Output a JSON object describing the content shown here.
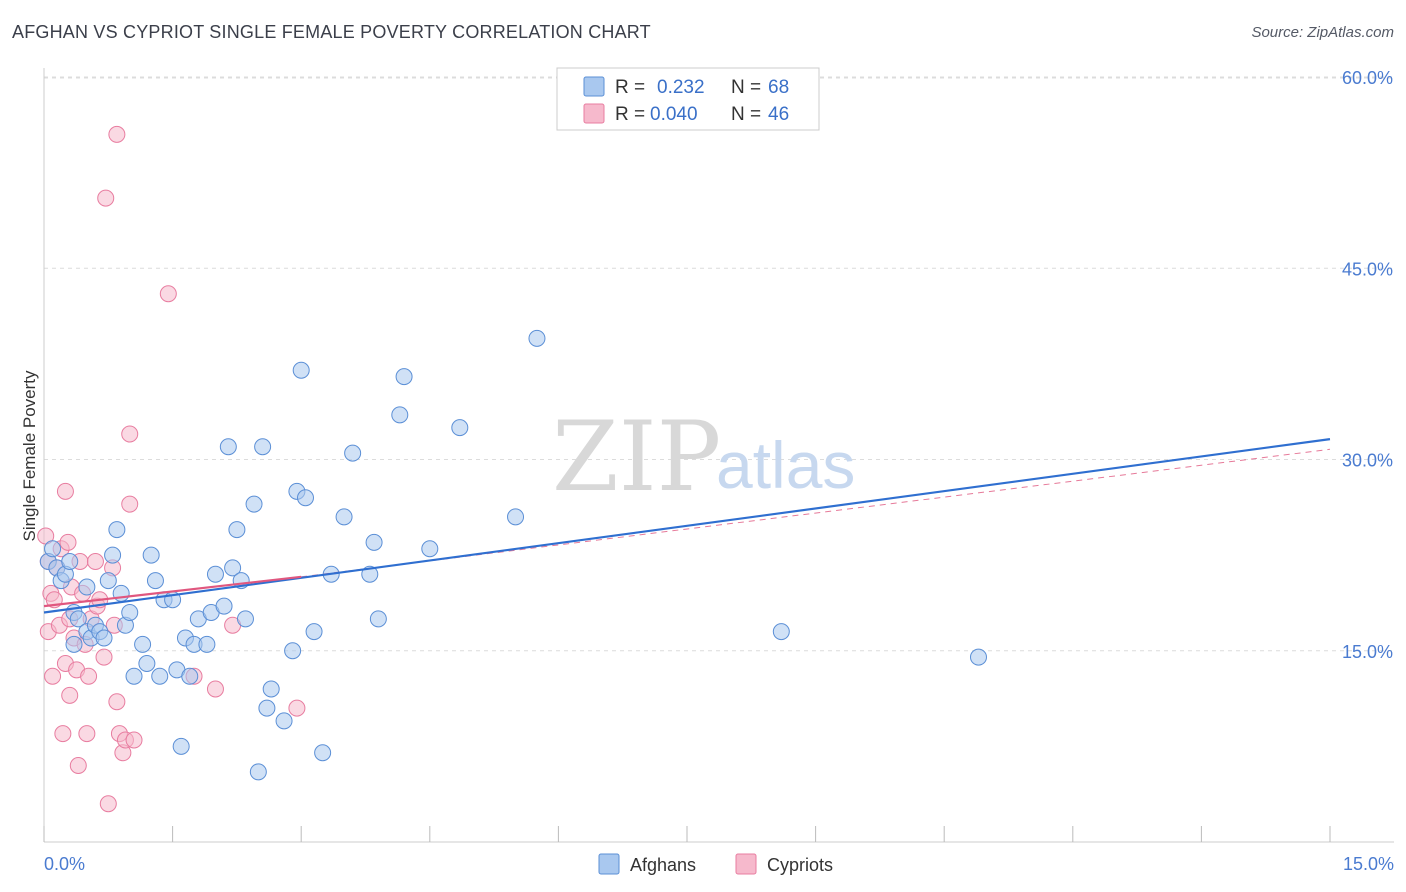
{
  "title": "AFGHAN VS CYPRIOT SINGLE FEMALE POVERTY CORRELATION CHART",
  "source": "Source: ZipAtlas.com",
  "colors": {
    "afghans_fill": "#a9c8ef",
    "afghans_stroke": "#5b8fd6",
    "afghans_line": "#2f6fd0",
    "cypriots_fill": "#f6b9cc",
    "cypriots_stroke": "#e87da0",
    "cypriots_line": "#e0577f",
    "tick_label": "#4a7bd0",
    "grid": "#dcdcdc"
  },
  "watermark": {
    "zip": "ZIP",
    "atlas": "atlas"
  },
  "legend": {
    "rows": [
      {
        "r_label": "R = ",
        "r_value": "0.232",
        "n_label": "N = ",
        "n_value": "68"
      },
      {
        "r_label": "R = ",
        "r_value": "0.040",
        "n_label": "N = ",
        "n_value": "46"
      }
    ]
  },
  "bottom_legend": {
    "afghans": "Afghans",
    "cypriots": "Cypriots"
  },
  "chart_data": {
    "type": "scatter",
    "title": "AFGHAN VS CYPRIOT SINGLE FEMALE POVERTY CORRELATION CHART",
    "xlabel": "",
    "ylabel": "Single Female Poverty",
    "xlim": [
      0,
      15
    ],
    "ylim": [
      0,
      61
    ],
    "x_tick_labels": [
      "0.0%",
      "15.0%"
    ],
    "y_ticks": [
      15,
      30,
      45,
      60
    ],
    "y_tick_labels": [
      "15.0%",
      "30.0%",
      "45.0%",
      "60.0%"
    ],
    "grid": true,
    "legend_position": "top-center",
    "series": [
      {
        "name": "Afghans",
        "r": 0.232,
        "n": 68,
        "trend": {
          "x": [
            0,
            15
          ],
          "y": [
            18.0,
            31.6
          ]
        },
        "points": [
          [
            0.05,
            22.0
          ],
          [
            0.1,
            23.0
          ],
          [
            0.15,
            21.5
          ],
          [
            0.2,
            20.5
          ],
          [
            0.25,
            21.0
          ],
          [
            0.3,
            22.0
          ],
          [
            0.35,
            15.5
          ],
          [
            0.35,
            18.0
          ],
          [
            0.4,
            17.5
          ],
          [
            0.5,
            20.0
          ],
          [
            0.5,
            16.5
          ],
          [
            0.55,
            16.0
          ],
          [
            0.6,
            17.0
          ],
          [
            0.65,
            16.5
          ],
          [
            0.7,
            16.0
          ],
          [
            0.75,
            20.5
          ],
          [
            0.8,
            22.5
          ],
          [
            0.85,
            24.5
          ],
          [
            0.9,
            19.5
          ],
          [
            0.95,
            17.0
          ],
          [
            1.0,
            18.0
          ],
          [
            1.05,
            13.0
          ],
          [
            1.15,
            15.5
          ],
          [
            1.2,
            14.0
          ],
          [
            1.25,
            22.5
          ],
          [
            1.3,
            20.5
          ],
          [
            1.35,
            13.0
          ],
          [
            1.4,
            19.0
          ],
          [
            1.5,
            19.0
          ],
          [
            1.55,
            13.5
          ],
          [
            1.6,
            7.5
          ],
          [
            1.65,
            16.0
          ],
          [
            1.7,
            13.0
          ],
          [
            1.75,
            15.5
          ],
          [
            1.8,
            17.5
          ],
          [
            1.9,
            15.5
          ],
          [
            1.95,
            18.0
          ],
          [
            2.0,
            21.0
          ],
          [
            2.1,
            18.5
          ],
          [
            2.15,
            31.0
          ],
          [
            2.2,
            21.5
          ],
          [
            2.25,
            24.5
          ],
          [
            2.3,
            20.5
          ],
          [
            2.35,
            17.5
          ],
          [
            2.45,
            26.5
          ],
          [
            2.5,
            5.5
          ],
          [
            2.55,
            31.0
          ],
          [
            2.6,
            10.5
          ],
          [
            2.65,
            12.0
          ],
          [
            2.8,
            9.5
          ],
          [
            2.9,
            15.0
          ],
          [
            2.95,
            27.5
          ],
          [
            3.0,
            37.0
          ],
          [
            3.05,
            27.0
          ],
          [
            3.15,
            16.5
          ],
          [
            3.25,
            7.0
          ],
          [
            3.35,
            21.0
          ],
          [
            3.5,
            25.5
          ],
          [
            3.6,
            30.5
          ],
          [
            3.8,
            21.0
          ],
          [
            3.85,
            23.5
          ],
          [
            3.9,
            17.5
          ],
          [
            4.15,
            33.5
          ],
          [
            4.2,
            36.5
          ],
          [
            4.5,
            23.0
          ],
          [
            4.85,
            32.5
          ],
          [
            5.5,
            25.5
          ],
          [
            5.75,
            39.5
          ],
          [
            8.6,
            16.5
          ],
          [
            10.9,
            14.5
          ]
        ]
      },
      {
        "name": "Cypriots",
        "r": 0.04,
        "n": 46,
        "trend": {
          "x": [
            0,
            3.0
          ],
          "y": [
            18.5,
            20.8
          ]
        },
        "trend_extended": {
          "x": [
            3.0,
            15
          ],
          "y": [
            20.8,
            30.8
          ]
        },
        "points": [
          [
            0.02,
            24.0
          ],
          [
            0.05,
            22.0
          ],
          [
            0.05,
            16.5
          ],
          [
            0.08,
            19.5
          ],
          [
            0.1,
            13.0
          ],
          [
            0.12,
            19.0
          ],
          [
            0.15,
            21.5
          ],
          [
            0.18,
            17.0
          ],
          [
            0.2,
            23.0
          ],
          [
            0.22,
            8.5
          ],
          [
            0.25,
            14.0
          ],
          [
            0.25,
            27.5
          ],
          [
            0.28,
            23.5
          ],
          [
            0.3,
            11.5
          ],
          [
            0.32,
            20.0
          ],
          [
            0.35,
            16.0
          ],
          [
            0.38,
            13.5
          ],
          [
            0.4,
            6.0
          ],
          [
            0.42,
            22.0
          ],
          [
            0.45,
            19.5
          ],
          [
            0.48,
            15.5
          ],
          [
            0.5,
            8.5
          ],
          [
            0.52,
            13.0
          ],
          [
            0.55,
            17.5
          ],
          [
            0.6,
            22.0
          ],
          [
            0.62,
            18.5
          ],
          [
            0.65,
            19.0
          ],
          [
            0.7,
            14.5
          ],
          [
            0.72,
            50.5
          ],
          [
            0.75,
            3.0
          ],
          [
            0.8,
            21.5
          ],
          [
            0.82,
            17.0
          ],
          [
            0.85,
            55.5
          ],
          [
            0.85,
            11.0
          ],
          [
            0.88,
            8.5
          ],
          [
            0.92,
            7.0
          ],
          [
            0.95,
            8.0
          ],
          [
            1.0,
            26.5
          ],
          [
            1.0,
            32.0
          ],
          [
            1.05,
            8.0
          ],
          [
            1.45,
            43.0
          ],
          [
            1.75,
            13.0
          ],
          [
            2.0,
            12.0
          ],
          [
            2.2,
            17.0
          ],
          [
            2.95,
            10.5
          ],
          [
            0.3,
            17.5
          ]
        ]
      }
    ]
  }
}
